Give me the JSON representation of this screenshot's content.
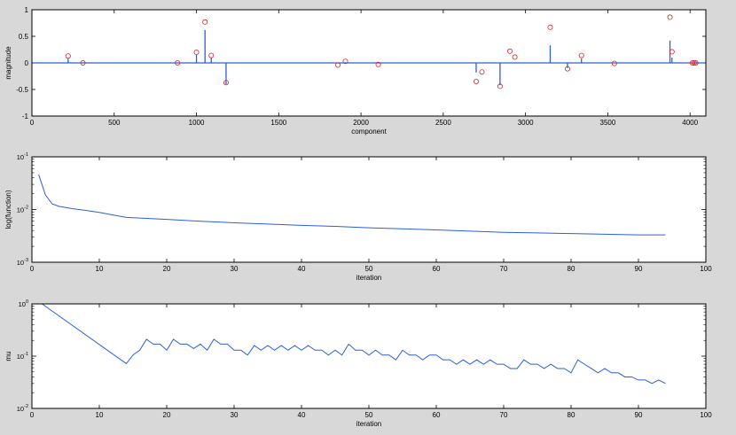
{
  "colors": {
    "stem_line": "#2b5fd9",
    "marker": "#e02020",
    "curve": "#2b5fd9",
    "axes": "#000000",
    "plot_bg": "#ffffff",
    "figure_bg": "#d8d8d8"
  },
  "chart_data": [
    {
      "type": "stem",
      "xlabel": "component",
      "ylabel": "magnitude",
      "xlim": [
        0,
        4096
      ],
      "ylim": [
        -1,
        1
      ],
      "xticks": [
        0,
        500,
        1000,
        1500,
        2000,
        2500,
        3000,
        3500,
        4000
      ],
      "yticks": [
        -1,
        -0.5,
        0,
        0.5,
        1
      ],
      "series": [
        {
          "marker": "line",
          "x": [
            220,
            1000,
            1052,
            1090,
            1180,
            2700,
            2845,
            3150,
            3255,
            3340,
            3878,
            3890
          ],
          "y": [
            0.08,
            0.15,
            0.62,
            0.1,
            -0.4,
            -0.18,
            -0.42,
            0.33,
            -0.1,
            0.08,
            0.42,
            0.1
          ]
        },
        {
          "marker": "circle",
          "x": [
            220,
            310,
            885,
            1000,
            1052,
            1090,
            1180,
            1860,
            1905,
            2105,
            2700,
            2735,
            2845,
            2905,
            2935,
            3150,
            3255,
            3340,
            3540,
            3878,
            3890,
            4015,
            4025,
            4035
          ],
          "y": [
            0.13,
            0.0,
            0.0,
            0.2,
            0.77,
            0.14,
            -0.37,
            -0.04,
            0.03,
            -0.03,
            -0.35,
            -0.17,
            -0.44,
            0.22,
            0.11,
            0.67,
            -0.11,
            0.14,
            -0.01,
            0.86,
            0.21,
            0.0,
            0.0,
            0.0
          ]
        }
      ]
    },
    {
      "type": "line",
      "xlabel": "iteration",
      "ylabel": "log(function)",
      "xlim": [
        0,
        100
      ],
      "ylim_exp": [
        -3,
        -1
      ],
      "yscale": "log",
      "xticks": [
        0,
        10,
        20,
        30,
        40,
        50,
        60,
        70,
        80,
        90,
        100
      ],
      "ytick_exponents": [
        -1,
        -2,
        -3
      ],
      "series": [
        {
          "x": [
            1,
            2,
            3,
            4,
            6,
            8,
            10,
            12,
            14,
            17,
            20,
            25,
            30,
            35,
            40,
            45,
            50,
            55,
            60,
            65,
            70,
            75,
            80,
            85,
            90,
            94
          ],
          "y": [
            0.046,
            0.019,
            0.0128,
            0.0115,
            0.0104,
            0.0096,
            0.0088,
            0.0079,
            0.0071,
            0.0068,
            0.0065,
            0.006,
            0.0056,
            0.0053,
            0.005,
            0.0048,
            0.0045,
            0.0043,
            0.0041,
            0.0039,
            0.0037,
            0.0036,
            0.0035,
            0.0034,
            0.0033,
            0.0033
          ]
        }
      ]
    },
    {
      "type": "line",
      "xlabel": "iteration",
      "ylabel": "mu",
      "xlim": [
        0,
        100
      ],
      "ylim_exp": [
        -2,
        0
      ],
      "yscale": "log",
      "xticks": [
        0,
        10,
        20,
        30,
        40,
        50,
        60,
        70,
        80,
        90,
        100
      ],
      "ytick_exponents": [
        0,
        -1,
        -2
      ],
      "series": [
        {
          "x": [
            1.5,
            14,
            15,
            16,
            17,
            18,
            19,
            20,
            21,
            22,
            23,
            24,
            25,
            26,
            27,
            28,
            29,
            30,
            31,
            32,
            33,
            34,
            35,
            36,
            37,
            38,
            39,
            40,
            41,
            42,
            43,
            44,
            45,
            46,
            47,
            48,
            49,
            50,
            51,
            52,
            53,
            54,
            55,
            56,
            57,
            58,
            59,
            60,
            61,
            62,
            63,
            64,
            65,
            66,
            67,
            68,
            69,
            70,
            71,
            72,
            73,
            74,
            75,
            76,
            77,
            78,
            79,
            80,
            81,
            82,
            83,
            84,
            85,
            86,
            87,
            88,
            89,
            90,
            91,
            92,
            93,
            94
          ],
          "y": [
            1.0,
            0.072,
            0.105,
            0.13,
            0.21,
            0.17,
            0.17,
            0.13,
            0.21,
            0.17,
            0.17,
            0.14,
            0.17,
            0.13,
            0.21,
            0.17,
            0.17,
            0.13,
            0.13,
            0.105,
            0.16,
            0.13,
            0.16,
            0.13,
            0.16,
            0.13,
            0.16,
            0.13,
            0.16,
            0.13,
            0.13,
            0.105,
            0.13,
            0.105,
            0.17,
            0.13,
            0.13,
            0.105,
            0.13,
            0.105,
            0.105,
            0.085,
            0.13,
            0.105,
            0.105,
            0.085,
            0.105,
            0.105,
            0.085,
            0.085,
            0.07,
            0.085,
            0.07,
            0.085,
            0.07,
            0.085,
            0.07,
            0.07,
            0.058,
            0.058,
            0.085,
            0.07,
            0.07,
            0.058,
            0.07,
            0.058,
            0.058,
            0.048,
            0.085,
            0.07,
            0.058,
            0.048,
            0.058,
            0.048,
            0.048,
            0.04,
            0.04,
            0.035,
            0.035,
            0.03,
            0.035,
            0.03
          ]
        }
      ]
    }
  ]
}
